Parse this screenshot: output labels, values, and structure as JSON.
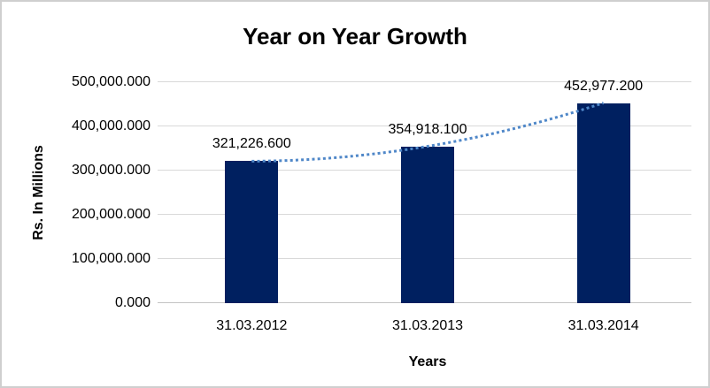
{
  "chart_data": {
    "type": "bar",
    "title": "Year on Year Growth",
    "xlabel": "Years",
    "ylabel": "Rs. In Millions",
    "categories": [
      "31.03.2012",
      "31.03.2013",
      "31.03.2014"
    ],
    "values": [
      321226.6,
      354918.1,
      452977.2
    ],
    "data_labels": [
      "321,226.600",
      "354,918.100",
      "452,977.200"
    ],
    "y_ticks": [
      {
        "value": 0,
        "label": "0.000"
      },
      {
        "value": 100000,
        "label": "100,000.000"
      },
      {
        "value": 200000,
        "label": "200,000.000"
      },
      {
        "value": 300000,
        "label": "300,000.000"
      },
      {
        "value": 400000,
        "label": "400,000.000"
      },
      {
        "value": 500000,
        "label": "500,000.000"
      }
    ],
    "ylim": [
      0,
      500000
    ],
    "grid": true,
    "legend": "none",
    "bar_color": "#002060",
    "gridline_color": "#d9d9d9",
    "axis_line_color": "#c3c3c3",
    "text_color": "#000000",
    "trendline": {
      "type": "curved-dotted",
      "color": "#4f87c8"
    }
  }
}
